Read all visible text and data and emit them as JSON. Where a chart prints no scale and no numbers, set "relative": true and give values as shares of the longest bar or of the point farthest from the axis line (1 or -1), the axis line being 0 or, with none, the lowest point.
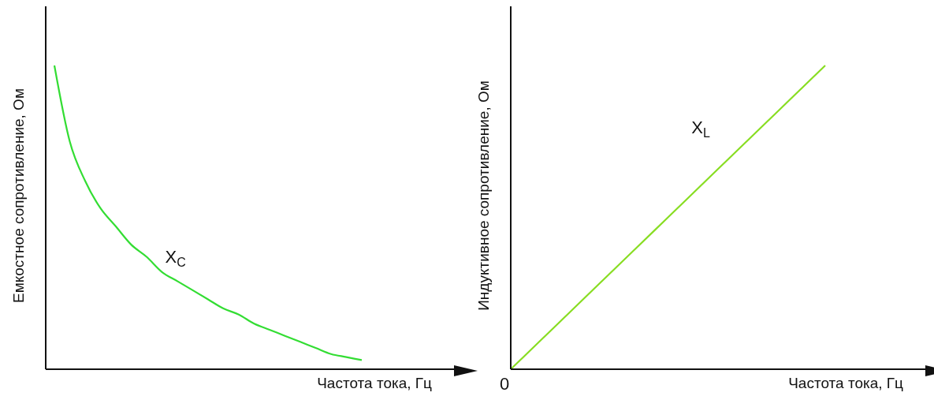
{
  "chart_data": [
    {
      "type": "line",
      "relative": true,
      "ylabel": "Емкостное сопротивление, Ом",
      "xlabel": "Частота тока, Гц",
      "categories": [
        null,
        null,
        null,
        null,
        null,
        null,
        null,
        null,
        null,
        null,
        null,
        null,
        null,
        null,
        null,
        null,
        null,
        null,
        null,
        null,
        null
      ],
      "series": [
        {
          "name": "X$_{C}$",
          "color": "#33dd33",
          "values": [
            1,
            0.75,
            0.62,
            0.53,
            0.47,
            0.41,
            0.37,
            0.32,
            0.29,
            0.26,
            0.23,
            0.2,
            0.18,
            0.15,
            0.13,
            0.11,
            0.09,
            0.07,
            0.05,
            0.04,
            0.03
          ]
        }
      ]
    },
    {
      "type": "line",
      "relative": true,
      "ylabel": "Индуктивное сопротивление, Ом",
      "xlabel": "Частота тока, Гц",
      "annotations": [
        "0"
      ],
      "categories": [
        null,
        null,
        null,
        null,
        null,
        null,
        null,
        null,
        null,
        null,
        null
      ],
      "series": [
        {
          "name": "X$_{L}$",
          "color": "#88dd22",
          "values": [
            0,
            0.1,
            0.2,
            0.3,
            0.4,
            0.5,
            0.6,
            0.7,
            0.8,
            0.9,
            1
          ]
        }
      ]
    }
  ]
}
